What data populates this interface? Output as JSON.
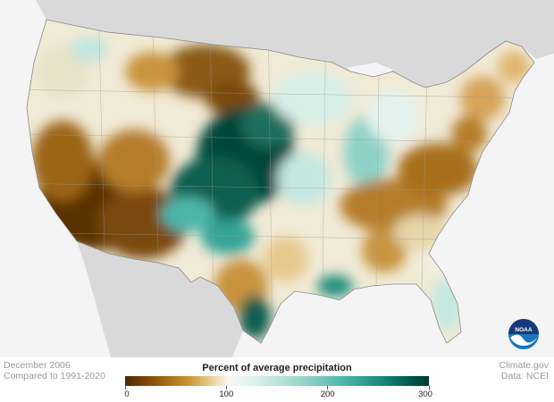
{
  "map": {
    "type": "choropleth",
    "region": "Contiguous United States",
    "variable": "Percent of average precipitation",
    "colors": {
      "very_dry": "#5a3306",
      "dry": "#a8701f",
      "slightly_dry": "#e6c98c",
      "near_normal": "#f5f3ec",
      "slightly_wet": "#bfe6df",
      "wet": "#35a496",
      "very_wet": "#00463a",
      "land_outside": "#d9d9d9",
      "water": "#f4f4f4"
    }
  },
  "legend": {
    "title": "Percent of average precipitation",
    "min": 0,
    "max": 300,
    "ticks": [
      "0",
      "100",
      "200",
      "300"
    ],
    "tick_values": [
      0,
      100,
      200,
      300
    ]
  },
  "footer": {
    "period": "December 2006",
    "baseline": "Compared to 1991-2020",
    "source_site": "Climate.gov",
    "data_source": "Data: NCEI"
  },
  "logo": {
    "text": "NOAA",
    "icon": "noaa-logo-icon"
  }
}
